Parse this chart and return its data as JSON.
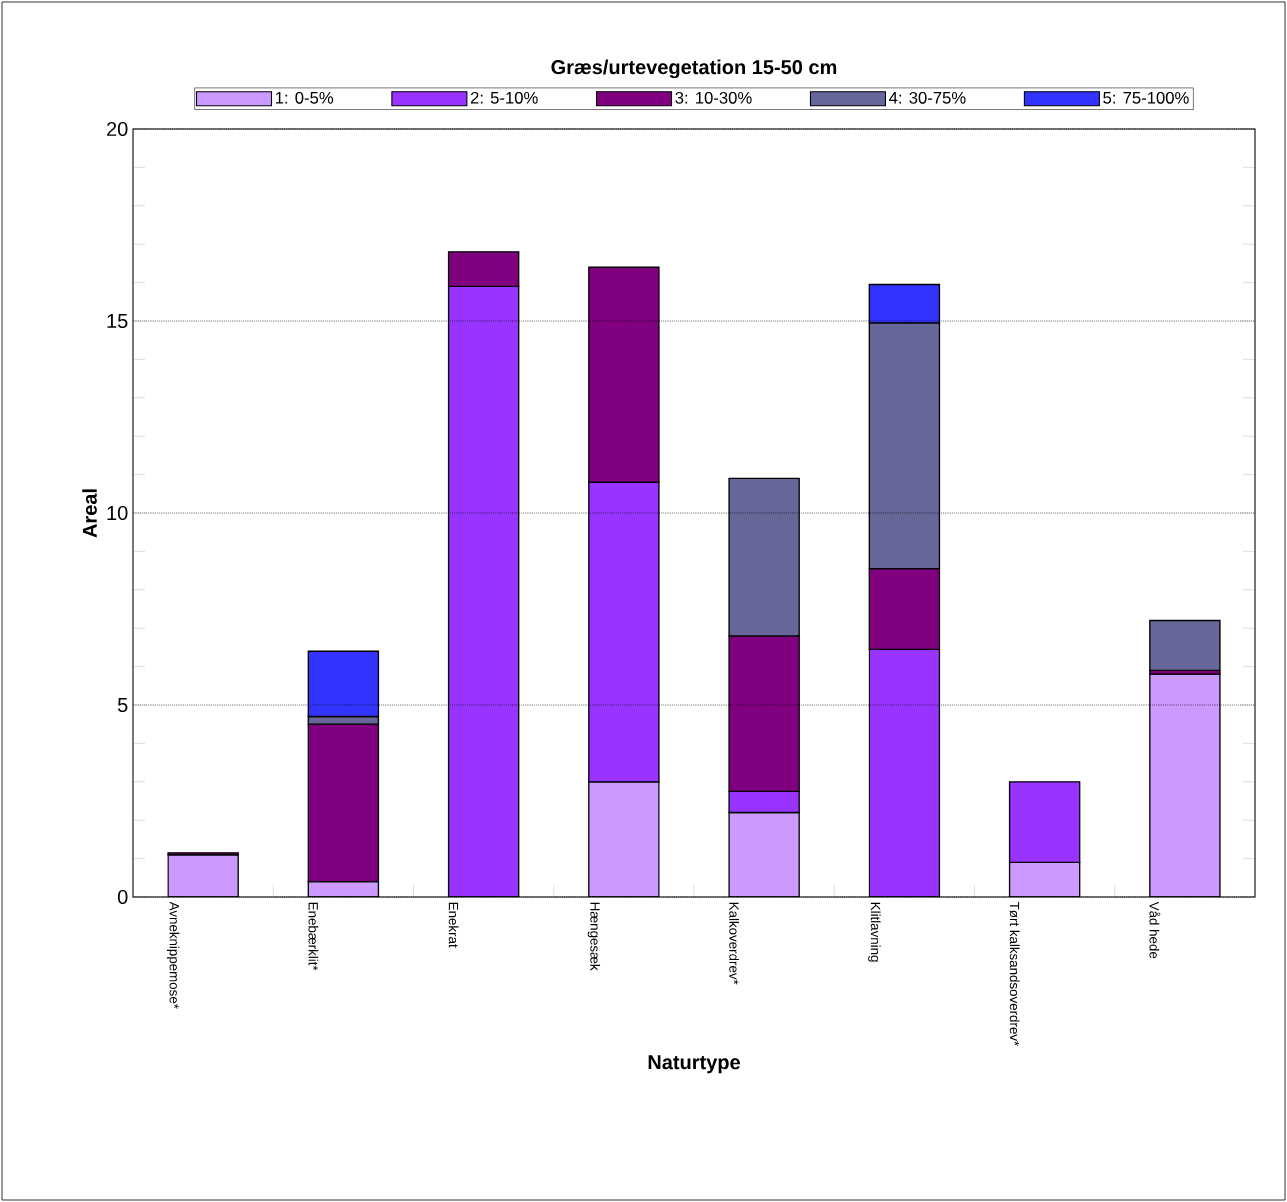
{
  "chart_data": {
    "type": "bar",
    "stacked": true,
    "title": "Græs/urtevegetation 15-50 cm",
    "xlabel": "Naturtype",
    "ylabel": "Areal",
    "categories": [
      "Avneknippemose*",
      "Enebærklit*",
      "Enekrat",
      "Hængesæk",
      "Kalkoverdrev*",
      "Klitlavning",
      "Tørt kalksandsoverdrev*",
      "Våd hede"
    ],
    "series": [
      {
        "name": "1: 0-5%",
        "color": "#cc99ff",
        "values": [
          1.1,
          0.4,
          null,
          3.0,
          2.2,
          null,
          0.9,
          5.8
        ]
      },
      {
        "name": "2: 5-10%",
        "color": "#9933ff",
        "values": [
          null,
          null,
          15.9,
          7.8,
          0.55,
          6.45,
          2.1,
          null
        ]
      },
      {
        "name": "3: 10-30%",
        "color": "#800080",
        "values": [
          0.05,
          4.1,
          0.9,
          5.6,
          4.05,
          2.1,
          null,
          0.1
        ]
      },
      {
        "name": "4: 30-75%",
        "color": "#666699",
        "values": [
          null,
          0.2,
          null,
          null,
          4.1,
          6.4,
          null,
          1.3
        ]
      },
      {
        "name": "5: 75-100%",
        "color": "#3333ff",
        "values": [
          null,
          1.7,
          null,
          null,
          null,
          1.0,
          null,
          null
        ]
      }
    ],
    "ylim": [
      0,
      20
    ],
    "yticks": [
      0,
      5,
      10,
      15,
      20
    ],
    "grid": "y",
    "legend": "top"
  }
}
